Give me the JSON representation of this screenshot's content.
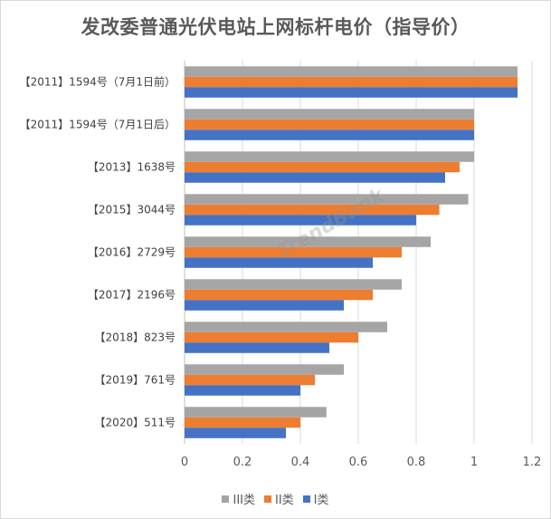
{
  "chart_data": {
    "type": "bar",
    "orientation": "horizontal",
    "title": "发改委普通光伏电站上网标杆电价（指导价）",
    "categories": [
      "【2011】1594号（7月1日前）",
      "【2011】1594号（7月1日后）",
      "【2013】1638号",
      "【2015】3044号",
      "【2016】2729号",
      "【2017】2196号",
      "【2018】823号",
      "【2019】761号",
      "【2020】511号"
    ],
    "series": [
      {
        "name": "III类",
        "color": "#a5a5a5",
        "values": [
          1.15,
          1.0,
          1.0,
          0.98,
          0.85,
          0.75,
          0.7,
          0.55,
          0.49
        ]
      },
      {
        "name": "II类",
        "color": "#ed7d31",
        "values": [
          1.15,
          1.0,
          0.95,
          0.88,
          0.75,
          0.65,
          0.6,
          0.45,
          0.4
        ]
      },
      {
        "name": "I类",
        "color": "#4472c4",
        "values": [
          1.15,
          1.0,
          0.9,
          0.8,
          0.65,
          0.55,
          0.5,
          0.4,
          0.35
        ]
      }
    ],
    "xlim": [
      0,
      1.2
    ],
    "xticks": [
      0,
      0.2,
      0.4,
      0.6,
      0.8,
      1,
      1.2
    ],
    "grid": true,
    "legend_position": "bottom",
    "legend_order": [
      "III类",
      "II类",
      "I类"
    ]
  },
  "watermark": {
    "text": "TrendBank"
  }
}
